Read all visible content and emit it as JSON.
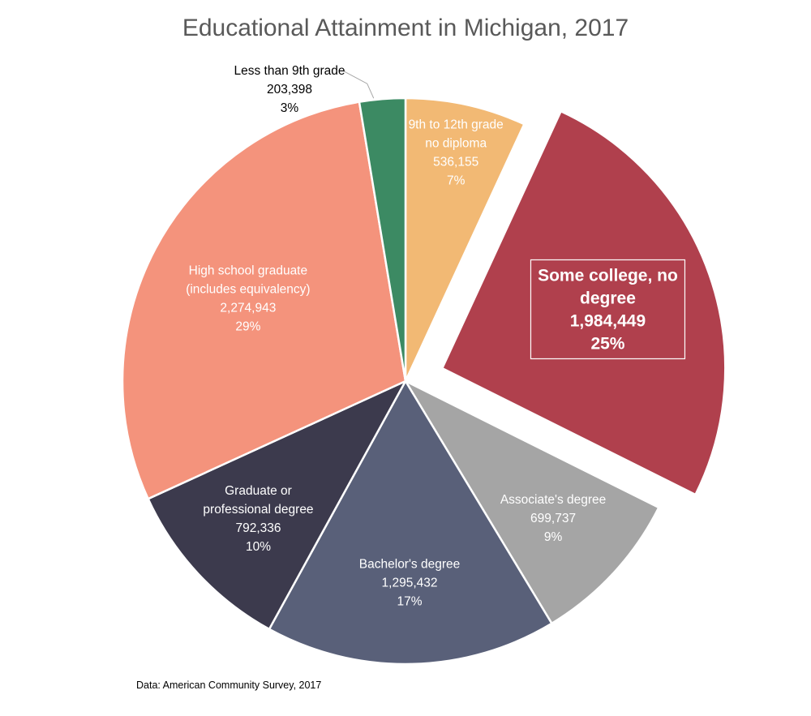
{
  "chart_data": {
    "type": "pie",
    "title": "Educational Attainment in Michigan, 2017",
    "footnote": "Data: American Community Survey, 2017",
    "slices": [
      {
        "label_lines": [
          "9th to 12th grade",
          "no diploma"
        ],
        "value": 536155,
        "value_text": "536,155",
        "percent": "7%",
        "color": "#F2B974",
        "text_color": "#FFFFFF",
        "exploded": false
      },
      {
        "label_lines": [
          "Some college, no",
          "degree"
        ],
        "value": 1984449,
        "value_text": "1,984,449",
        "percent": "25%",
        "color": "#B0404D",
        "text_color": "#FFFFFF",
        "exploded": true,
        "emphasized": true
      },
      {
        "label_lines": [
          "Associate's degree"
        ],
        "value": 699737,
        "value_text": "699,737",
        "percent": "9%",
        "color": "#A5A5A5",
        "text_color": "#FFFFFF",
        "exploded": false
      },
      {
        "label_lines": [
          "Bachelor's degree"
        ],
        "value": 1295432,
        "value_text": "1,295,432",
        "percent": "17%",
        "color": "#596079",
        "text_color": "#FFFFFF",
        "exploded": false
      },
      {
        "label_lines": [
          "Graduate or",
          "professional degree"
        ],
        "value": 792336,
        "value_text": "792,336",
        "percent": "10%",
        "color": "#3C3A4D",
        "text_color": "#FFFFFF",
        "exploded": false
      },
      {
        "label_lines": [
          "High school graduate",
          "(includes equivalency)"
        ],
        "value": 2274943,
        "value_text": "2,274,943",
        "percent": "29%",
        "color": "#F4937C",
        "text_color": "#FFFFFF",
        "exploded": false
      },
      {
        "label_lines": [
          "Less than 9th grade"
        ],
        "value": 203398,
        "value_text": "203,398",
        "percent": "3%",
        "color": "#3C8A63",
        "text_color": "#000000",
        "exploded": false,
        "label_outside": true
      }
    ],
    "start_angle": "12 o'clock",
    "direction": "clockwise"
  }
}
